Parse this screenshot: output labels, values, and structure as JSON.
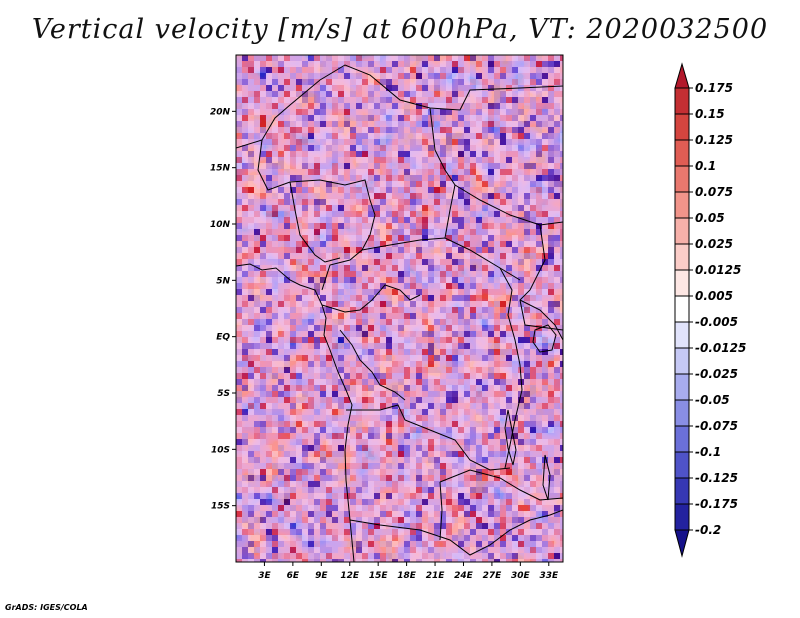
{
  "chart_data": {
    "type": "heatmap",
    "title": "Vertical velocity [m/s] at 600hPa, VT: 2020032500",
    "variable": "Vertical velocity",
    "units": "m/s",
    "level": "600hPa",
    "valid_time": "2020032500",
    "x_ticks": [
      {
        "value": 3,
        "label": "3E"
      },
      {
        "value": 6,
        "label": "6E"
      },
      {
        "value": 9,
        "label": "9E"
      },
      {
        "value": 12,
        "label": "12E"
      },
      {
        "value": 15,
        "label": "15E"
      },
      {
        "value": 18,
        "label": "18E"
      },
      {
        "value": 21,
        "label": "21E"
      },
      {
        "value": 24,
        "label": "24E"
      },
      {
        "value": 27,
        "label": "27E"
      },
      {
        "value": 30,
        "label": "30E"
      },
      {
        "value": 33,
        "label": "33E"
      }
    ],
    "y_ticks": [
      {
        "value": 20,
        "label": "20N"
      },
      {
        "value": 15,
        "label": "15N"
      },
      {
        "value": 10,
        "label": "10N"
      },
      {
        "value": 5,
        "label": "5N"
      },
      {
        "value": 0,
        "label": "EQ"
      },
      {
        "value": -5,
        "label": "5S"
      },
      {
        "value": -10,
        "label": "10S"
      },
      {
        "value": -15,
        "label": "15S"
      }
    ],
    "xlim": [
      0,
      34.5
    ],
    "ylim": [
      -20,
      25
    ],
    "colorbar": {
      "levels": [
        "0.175",
        "0.15",
        "0.125",
        "0.1",
        "0.075",
        "0.05",
        "0.025",
        "0.0125",
        "0.005",
        "-0.005",
        "-0.0125",
        "-0.025",
        "-0.05",
        "-0.075",
        "-0.1",
        "-0.125",
        "-0.175",
        "-0.2"
      ],
      "colors": [
        "#b2182b",
        "#c42f33",
        "#d4453f",
        "#e05d54",
        "#e9786e",
        "#f1948a",
        "#f7b1aa",
        "#fbcdc8",
        "#fde7e4",
        "#ffffff",
        "#e1e3fb",
        "#c6c9f5",
        "#a8acee",
        "#898ee5",
        "#6b70d9",
        "#4f53c8",
        "#3638b4",
        "#23229f",
        "#15118a"
      ]
    }
  },
  "credit": "GrADS: IGES/COLA"
}
